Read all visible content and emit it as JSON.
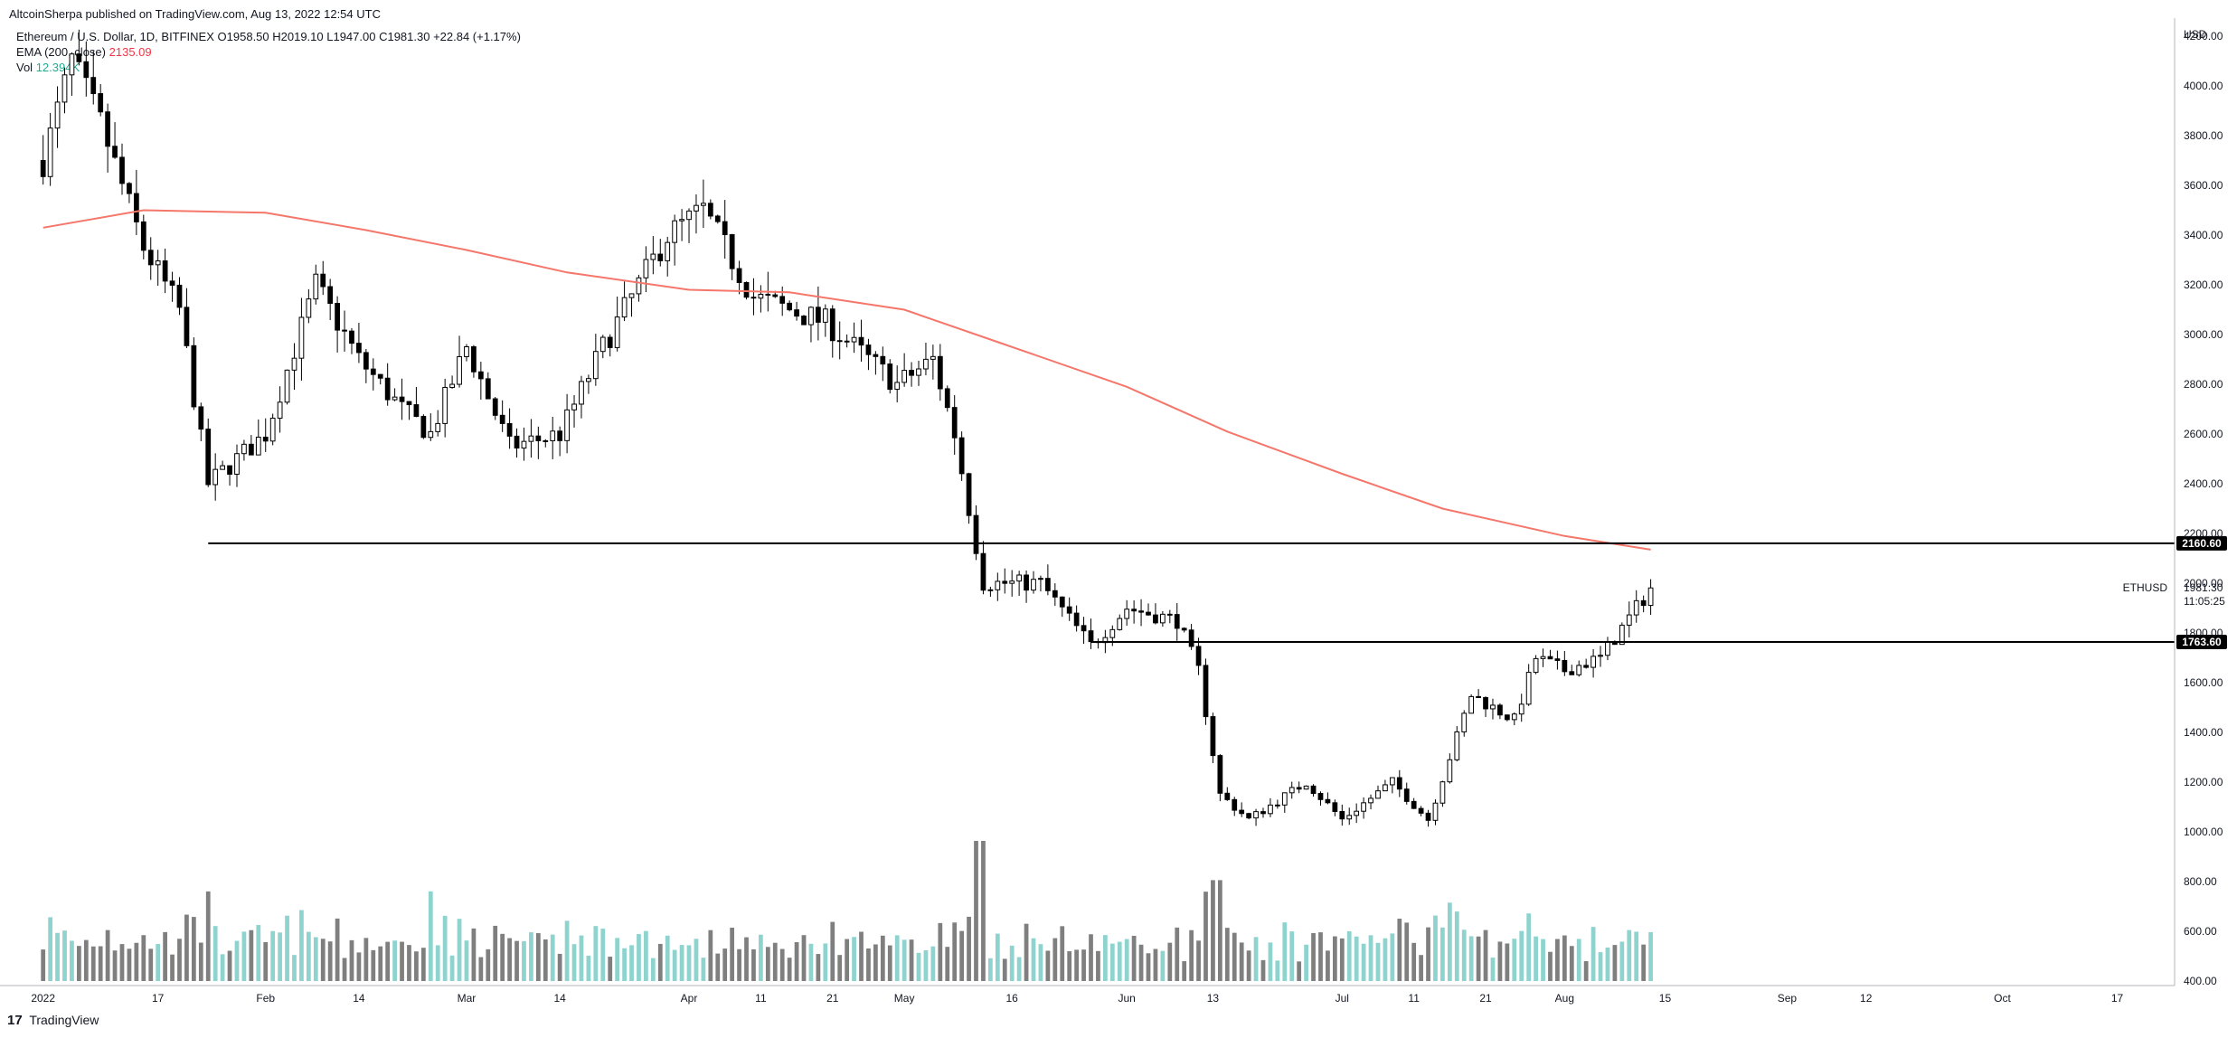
{
  "publisher": "AltcoinSherpa published on TradingView.com, Aug 13, 2022 12:54 UTC",
  "legend": {
    "symbol": "Ethereum / U.S. Dollar, 1D, BITFINEX",
    "ohlc": "O1958.50  H2019.10  L1947.00  C1981.30  +22.84 (+1.17%)",
    "ema_label": "EMA (200, close)",
    "ema_value": "2135.09",
    "vol_label": "Vol",
    "vol_value": "12.394K"
  },
  "footer": {
    "brand": "TradingView",
    "logo": "tradingview-logo-icon"
  },
  "colors": {
    "up": "#ffffff",
    "down": "#000000",
    "ema": "#f5766a",
    "vol_up": "#8fd3cf",
    "vol_down": "#7f7f7f",
    "level": "#000000"
  },
  "chart_data": {
    "type": "candlestick",
    "symbol": "ETHUSD",
    "timeframe": "1D",
    "currency_label": "USD",
    "y_ticks": [
      "4200.00",
      "4000.00",
      "3800.00",
      "3600.00",
      "3400.00",
      "3200.00",
      "3000.00",
      "2800.00",
      "2600.00",
      "2400.00",
      "2200.00",
      "2000.00",
      "1800.00",
      "1600.00",
      "1400.00",
      "1200.00",
      "1000.00",
      "800.00",
      "600.00",
      "400.00"
    ],
    "x_ticks": [
      "2022",
      "17",
      "Feb",
      "14",
      "Mar",
      "14",
      "Apr",
      "11",
      "21",
      "May",
      "16",
      "Jun",
      "13",
      "Jul",
      "11",
      "21",
      "Aug",
      "15",
      "Sep",
      "12",
      "Oct",
      "17"
    ],
    "last_price": {
      "label": "ETHUSD",
      "value": "1981.30",
      "countdown": "11:05:25"
    },
    "levels": [
      {
        "label": "2160.60",
        "value": 2160.6,
        "start": "2022-01-24"
      },
      {
        "label": "1763.60",
        "value": 1763.6,
        "start": "2022-05-27"
      }
    ],
    "ema_200": [
      [
        "2022-01-01",
        3430
      ],
      [
        "2022-01-15",
        3500
      ],
      [
        "2022-02-01",
        3490
      ],
      [
        "2022-02-15",
        3420
      ],
      [
        "2022-03-01",
        3340
      ],
      [
        "2022-03-15",
        3250
      ],
      [
        "2022-04-01",
        3180
      ],
      [
        "2022-04-15",
        3170
      ],
      [
        "2022-05-01",
        3100
      ],
      [
        "2022-05-15",
        2960
      ],
      [
        "2022-06-01",
        2790
      ],
      [
        "2022-06-15",
        2610
      ],
      [
        "2022-07-01",
        2440
      ],
      [
        "2022-07-15",
        2300
      ],
      [
        "2022-08-01",
        2190
      ],
      [
        "2022-08-13",
        2135
      ]
    ],
    "ohlc_waypoints": [
      [
        "2022-01-01",
        3700
      ],
      [
        "2022-01-05",
        4100
      ],
      [
        "2022-01-09",
        3850
      ],
      [
        "2022-01-15",
        3350
      ],
      [
        "2022-01-20",
        3100
      ],
      [
        "2022-01-24",
        2400
      ],
      [
        "2022-02-01",
        2600
      ],
      [
        "2022-02-08",
        3200
      ],
      [
        "2022-02-14",
        2900
      ],
      [
        "2022-02-20",
        2700
      ],
      [
        "2022-02-24",
        2600
      ],
      [
        "2022-03-01",
        2950
      ],
      [
        "2022-03-07",
        2550
      ],
      [
        "2022-03-14",
        2600
      ],
      [
        "2022-03-20",
        2950
      ],
      [
        "2022-03-29",
        3400
      ],
      [
        "2022-04-03",
        3500
      ],
      [
        "2022-04-10",
        3150
      ],
      [
        "2022-04-20",
        3050
      ],
      [
        "2022-04-30",
        2800
      ],
      [
        "2022-05-05",
        2900
      ],
      [
        "2022-05-08",
        2600
      ],
      [
        "2022-05-12",
        2000
      ],
      [
        "2022-05-20",
        2000
      ],
      [
        "2022-05-27",
        1750
      ],
      [
        "2022-06-01",
        1900
      ],
      [
        "2022-06-08",
        1850
      ],
      [
        "2022-06-11",
        1650
      ],
      [
        "2022-06-14",
        1150
      ],
      [
        "2022-06-18",
        1050
      ],
      [
        "2022-06-26",
        1200
      ],
      [
        "2022-07-01",
        1050
      ],
      [
        "2022-07-08",
        1200
      ],
      [
        "2022-07-13",
        1050
      ],
      [
        "2022-07-19",
        1550
      ],
      [
        "2022-07-25",
        1450
      ],
      [
        "2022-07-28",
        1700
      ],
      [
        "2022-08-01",
        1650
      ],
      [
        "2022-08-06",
        1700
      ],
      [
        "2022-08-13",
        1980
      ]
    ]
  }
}
